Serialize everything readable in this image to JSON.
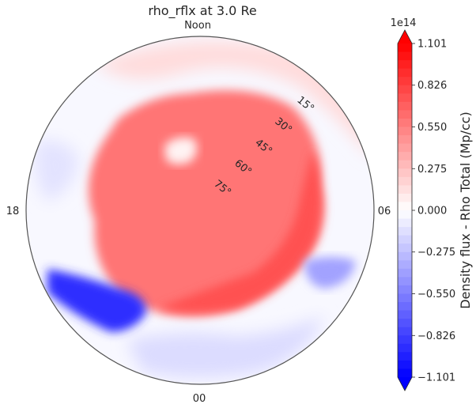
{
  "chart_data": {
    "type": "heatmap",
    "projection": "polar",
    "title": "rho_rflx at 3.0 Re",
    "direction_labels": {
      "top": "Noon",
      "left": "18",
      "right": "06",
      "bottom": "00"
    },
    "latitude_labels": [
      "15°",
      "30°",
      "45°",
      "60°",
      "75°"
    ],
    "latitude_values": [
      15,
      30,
      45,
      60,
      75
    ],
    "colorbar": {
      "label": "Density flux - Rho Total (Mp/cc)",
      "exponent_label": "1e14",
      "ticks": [
        "1.101",
        "0.826",
        "0.550",
        "0.275",
        "0.000",
        "−0.275",
        "−0.550",
        "−0.826",
        "−1.101"
      ],
      "tick_values": [
        1.101,
        0.826,
        0.55,
        0.275,
        0.0,
        -0.275,
        -0.55,
        -0.826,
        -1.101
      ],
      "range": [
        -1.101,
        1.101
      ],
      "scale_factor": 100000000000000.0,
      "extend": "both",
      "colormap": "bwr",
      "levels": 40
    },
    "field_features": [
      {
        "region": "central ring (lat ~45-80)",
        "sign": "positive",
        "level": 0.6
      },
      {
        "region": "ring edge toward 06 and 00",
        "sign": "positive",
        "level": 0.75
      },
      {
        "region": "pocket near noon, lat ~60",
        "sign": "near zero",
        "level": 0.05
      },
      {
        "region": "low latitudes near 21h",
        "sign": "negative",
        "level": -0.9
      },
      {
        "region": "low latitudes near 03h",
        "sign": "negative",
        "level": -0.4
      },
      {
        "region": "dayside outer ring",
        "sign": "positive",
        "level": 0.15
      }
    ]
  },
  "colors": {
    "negative_end": "#0000ff",
    "zero": "#ffffff",
    "positive_end": "#ff0000",
    "frame": "#555555"
  }
}
